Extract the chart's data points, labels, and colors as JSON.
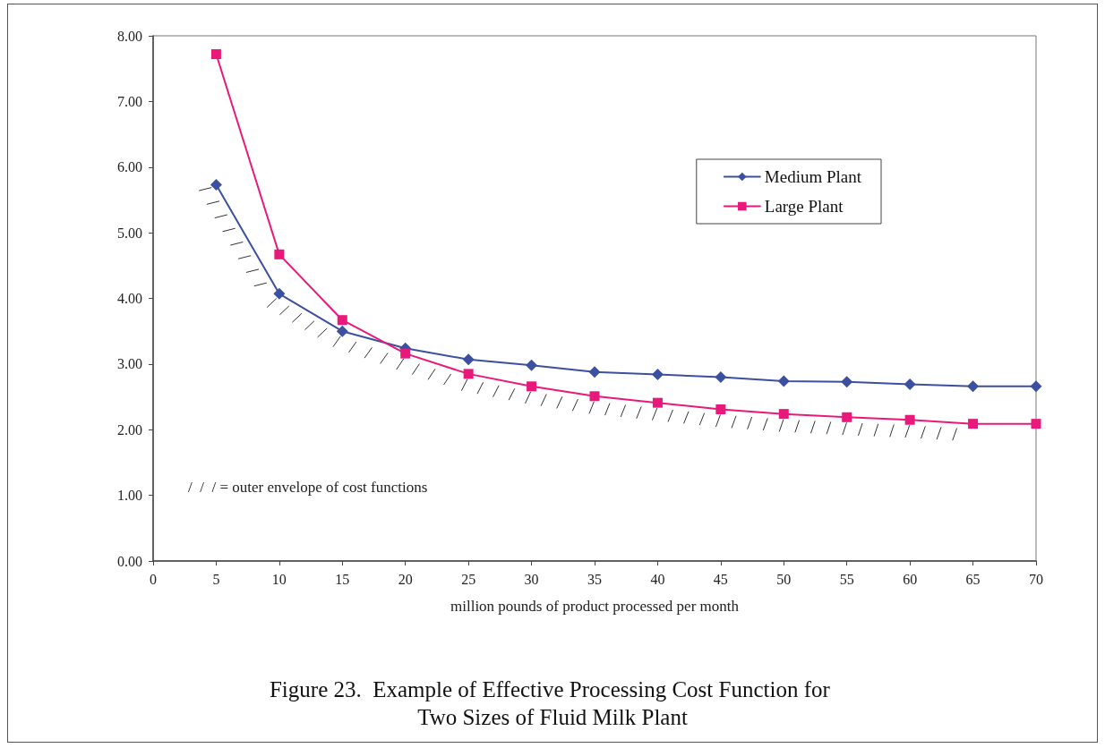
{
  "chart_data": {
    "type": "line",
    "title": "Figure 23.  Example of Effective Processing Cost Function for Two Sizes of Fluid Milk Plant",
    "xlabel": "million pounds of product processed per month",
    "x": [
      5,
      10,
      15,
      20,
      25,
      30,
      35,
      40,
      45,
      50,
      55,
      60,
      65,
      70
    ],
    "xlim": [
      0,
      70
    ],
    "xticks": [
      0,
      5,
      10,
      15,
      20,
      25,
      30,
      35,
      40,
      45,
      50,
      55,
      60,
      65,
      70
    ],
    "ylim": [
      0,
      8
    ],
    "yticks": [
      {
        "value": 0,
        "label": "0.00"
      },
      {
        "value": 1,
        "label": "1.00"
      },
      {
        "value": 2,
        "label": "2.00"
      },
      {
        "value": 3,
        "label": "3.00"
      },
      {
        "value": 4,
        "label": "4.00"
      },
      {
        "value": 5,
        "label": "5.00"
      },
      {
        "value": 6,
        "label": "6.00"
      },
      {
        "value": 7,
        "label": "7.00"
      },
      {
        "value": 8,
        "label": "8.00"
      }
    ],
    "series": [
      {
        "name": "Medium Plant",
        "color": "#3b50a0",
        "marker": "diamond",
        "values": [
          5.73,
          4.07,
          3.5,
          3.24,
          3.07,
          2.98,
          2.88,
          2.84,
          2.8,
          2.74,
          2.73,
          2.69,
          2.66,
          2.66
        ]
      },
      {
        "name": "Large Plant",
        "color": "#e8197a",
        "marker": "square",
        "values": [
          7.72,
          4.67,
          3.67,
          3.16,
          2.85,
          2.66,
          2.51,
          2.41,
          2.31,
          2.24,
          2.19,
          2.15,
          2.09,
          2.09
        ]
      }
    ],
    "annotations": [
      "/  /  / = outer envelope of cost functions"
    ],
    "legend": "top right",
    "grid": false,
    "line_style": "solid"
  }
}
